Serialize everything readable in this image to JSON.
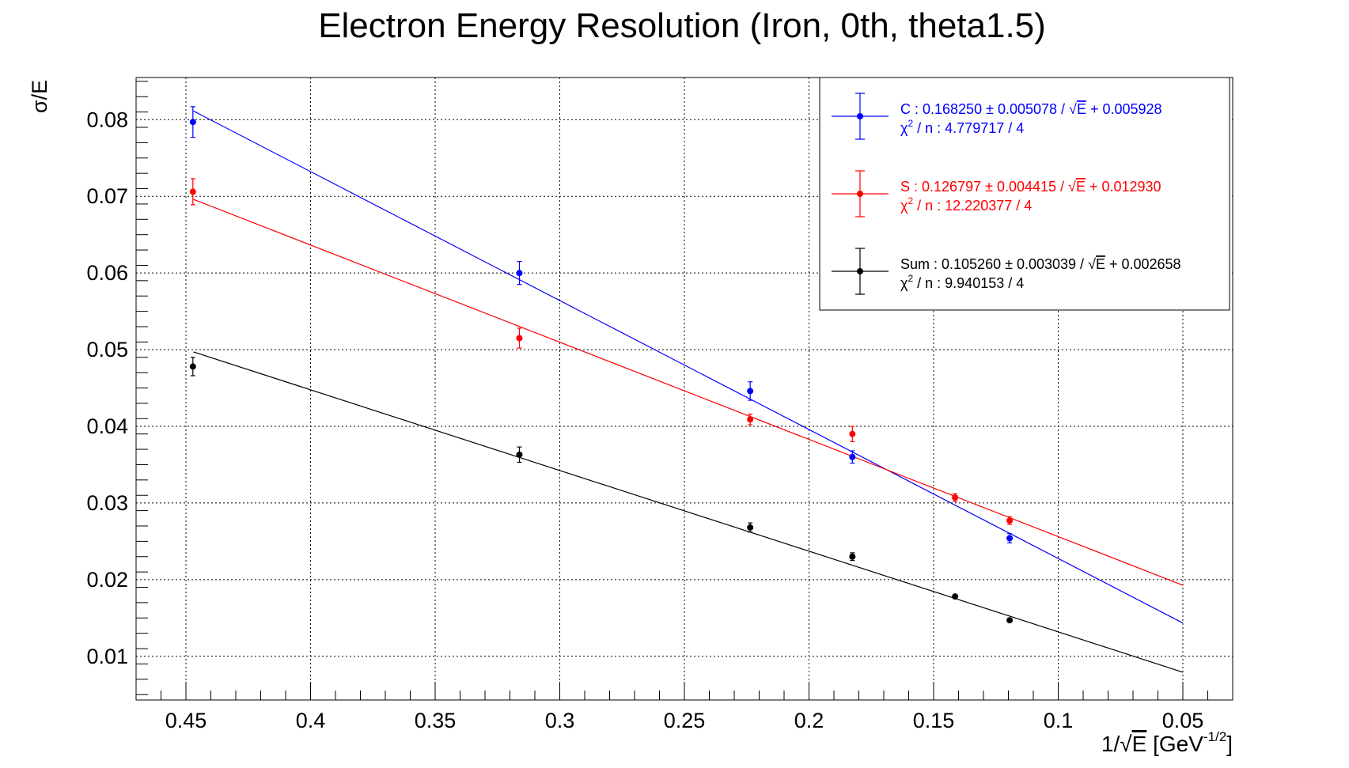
{
  "chart_data": {
    "type": "scatter",
    "title": "Electron Energy Resolution (Iron, 0th, theta1.5)",
    "ylabel": "σ/E",
    "xlabel": {
      "prefix": "1/",
      "radical": "√",
      "radicand": "E",
      "unit_open": " [GeV",
      "unit_exp": "-1/2",
      "unit_close": "]"
    },
    "x_reversed": true,
    "xlim": [
      0.47,
      0.03
    ],
    "ylim": [
      0.0043,
      0.0855
    ],
    "x_ticks": [
      0.45,
      0.4,
      0.35,
      0.3,
      0.25,
      0.2,
      0.15,
      0.1,
      0.05
    ],
    "x_tick_labels": [
      "0.45",
      "0.4",
      "0.35",
      "0.3",
      "0.25",
      "0.2",
      "0.15",
      "0.1",
      "0.05"
    ],
    "y_ticks": [
      0.01,
      0.02,
      0.03,
      0.04,
      0.05,
      0.06,
      0.07,
      0.08
    ],
    "y_tick_labels": [
      "0.01",
      "0.02",
      "0.03",
      "0.04",
      "0.05",
      "0.06",
      "0.07",
      "0.08"
    ],
    "grid": true,
    "legend_position": "top-right",
    "fit_range": [
      0.447,
      0.05
    ],
    "series": [
      {
        "name": "C",
        "color": "#0000ff",
        "fit": {
          "slope": 0.16825,
          "intercept": 0.005928
        },
        "legend": {
          "line1_prefix": "C : 0.168250 ± 0.005078 / ",
          "radicand": "E",
          "line1_suffix": " + 0.005928",
          "line2_prefix": "χ",
          "line2_exp": "2",
          "line2_suffix": " / n : 4.779717 / 4"
        },
        "points": [
          {
            "x": 0.4472,
            "y": 0.0797,
            "err": 0.002
          },
          {
            "x": 0.3162,
            "y": 0.06,
            "err": 0.0015
          },
          {
            "x": 0.2236,
            "y": 0.0446,
            "err": 0.0012
          },
          {
            "x": 0.1826,
            "y": 0.036,
            "err": 0.0008
          },
          {
            "x": 0.1195,
            "y": 0.0254,
            "err": 0.0006
          }
        ]
      },
      {
        "name": "S",
        "color": "#ff0000",
        "fit": {
          "slope": 0.126797,
          "intercept": 0.01293
        },
        "legend": {
          "line1_prefix": "S : 0.126797 ± 0.004415 / ",
          "radicand": "E",
          "line1_suffix": " + 0.012930",
          "line2_prefix": "χ",
          "line2_exp": "2",
          "line2_suffix": " / n : 12.220377 / 4"
        },
        "points": [
          {
            "x": 0.4472,
            "y": 0.0706,
            "err": 0.0017
          },
          {
            "x": 0.3162,
            "y": 0.0515,
            "err": 0.0013
          },
          {
            "x": 0.2236,
            "y": 0.0409,
            "err": 0.0007
          },
          {
            "x": 0.1826,
            "y": 0.039,
            "err": 0.001
          },
          {
            "x": 0.1414,
            "y": 0.0307,
            "err": 0.0005
          },
          {
            "x": 0.1195,
            "y": 0.0277,
            "err": 0.0005
          }
        ]
      },
      {
        "name": "Sum",
        "color": "#000000",
        "fit": {
          "slope": 0.10526,
          "intercept": 0.002658
        },
        "legend": {
          "line1_prefix": "Sum : 0.105260 ± 0.003039 / ",
          "radicand": "E",
          "line1_suffix": " + 0.002658",
          "line2_prefix": "χ",
          "line2_exp": "2",
          "line2_suffix": " / n : 9.940153 / 4"
        },
        "points": [
          {
            "x": 0.4472,
            "y": 0.0478,
            "err": 0.0012
          },
          {
            "x": 0.3162,
            "y": 0.0363,
            "err": 0.001
          },
          {
            "x": 0.2236,
            "y": 0.0268,
            "err": 0.0006
          },
          {
            "x": 0.1826,
            "y": 0.023,
            "err": 0.0005
          },
          {
            "x": 0.1414,
            "y": 0.0178,
            "err": 0.0002
          },
          {
            "x": 0.1195,
            "y": 0.0147,
            "err": 0.0002
          }
        ]
      }
    ]
  }
}
